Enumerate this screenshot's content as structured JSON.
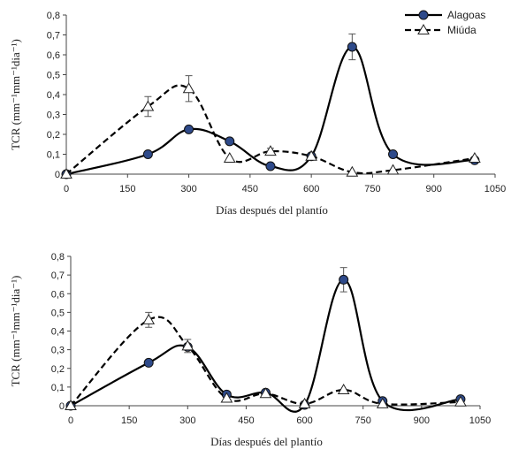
{
  "chart_data": [
    {
      "type": "line",
      "xlabel": "Días después del plantío",
      "ylabel": "TCR (mm⁻¹mm⁻¹dia⁻¹)",
      "xlim": [
        0,
        1050
      ],
      "ylim": [
        0,
        0.8
      ],
      "xticks": [
        "0",
        "150",
        "300",
        "450",
        "600",
        "750",
        "900",
        "1050"
      ],
      "yticks": [
        "0",
        "0,1",
        "0,2",
        "0,3",
        "0,4",
        "0,5",
        "0,6",
        "0,7",
        "0,8"
      ],
      "legend": {
        "position": "top-right",
        "show": true
      },
      "series": [
        {
          "name": "Alagoas",
          "style": "solid",
          "marker": "circle",
          "color": "#2e4a8a",
          "points": [
            {
              "x": 0,
              "y": 0
            },
            {
              "x": 200,
              "y": 0.1
            },
            {
              "x": 300,
              "y": 0.225,
              "err": 0.01
            },
            {
              "x": 400,
              "y": 0.165
            },
            {
              "x": 500,
              "y": 0.04
            },
            {
              "x": 600,
              "y": 0.09
            },
            {
              "x": 700,
              "y": 0.64,
              "err": 0.065
            },
            {
              "x": 800,
              "y": 0.1
            },
            {
              "x": 1000,
              "y": 0.07
            }
          ]
        },
        {
          "name": "Miúda",
          "style": "dashed",
          "marker": "triangle",
          "color": "#000000",
          "points": [
            {
              "x": 0,
              "y": 0
            },
            {
              "x": 200,
              "y": 0.34,
              "err": 0.05
            },
            {
              "x": 300,
              "y": 0.43,
              "err": 0.065
            },
            {
              "x": 400,
              "y": 0.08
            },
            {
              "x": 500,
              "y": 0.115,
              "err": 0.015
            },
            {
              "x": 600,
              "y": 0.09
            },
            {
              "x": 700,
              "y": 0.01
            },
            {
              "x": 800,
              "y": 0.02
            },
            {
              "x": 1000,
              "y": 0.08
            }
          ]
        }
      ]
    },
    {
      "type": "line",
      "xlabel": "Días después del plantío",
      "ylabel": "TCR (mm⁻¹mm⁻¹dia⁻¹)",
      "xlim": [
        0,
        1050
      ],
      "ylim": [
        0,
        0.8
      ],
      "xticks": [
        "0",
        "150",
        "300",
        "450",
        "600",
        "750",
        "900",
        "1050"
      ],
      "yticks": [
        "0",
        "0,1",
        "0,2",
        "0,3",
        "0,4",
        "0,5",
        "0,6",
        "0,7",
        "0,8"
      ],
      "legend": {
        "show": false
      },
      "series": [
        {
          "name": "Alagoas",
          "style": "solid",
          "marker": "circle",
          "color": "#2e4a8a",
          "points": [
            {
              "x": 0,
              "y": 0
            },
            {
              "x": 200,
              "y": 0.23
            },
            {
              "x": 300,
              "y": 0.315
            },
            {
              "x": 400,
              "y": 0.06
            },
            {
              "x": 500,
              "y": 0.07
            },
            {
              "x": 600,
              "y": 0.005
            },
            {
              "x": 700,
              "y": 0.675,
              "err": 0.065
            },
            {
              "x": 800,
              "y": 0.025
            },
            {
              "x": 1000,
              "y": 0.035
            }
          ]
        },
        {
          "name": "Miúda",
          "style": "dashed",
          "marker": "triangle",
          "color": "#000000",
          "points": [
            {
              "x": 0,
              "y": 0
            },
            {
              "x": 200,
              "y": 0.46,
              "err": 0.04
            },
            {
              "x": 300,
              "y": 0.32,
              "err": 0.035
            },
            {
              "x": 400,
              "y": 0.04
            },
            {
              "x": 500,
              "y": 0.065
            },
            {
              "x": 600,
              "y": 0.01
            },
            {
              "x": 700,
              "y": 0.085
            },
            {
              "x": 800,
              "y": 0.01
            },
            {
              "x": 1000,
              "y": 0.02
            }
          ]
        }
      ]
    }
  ]
}
